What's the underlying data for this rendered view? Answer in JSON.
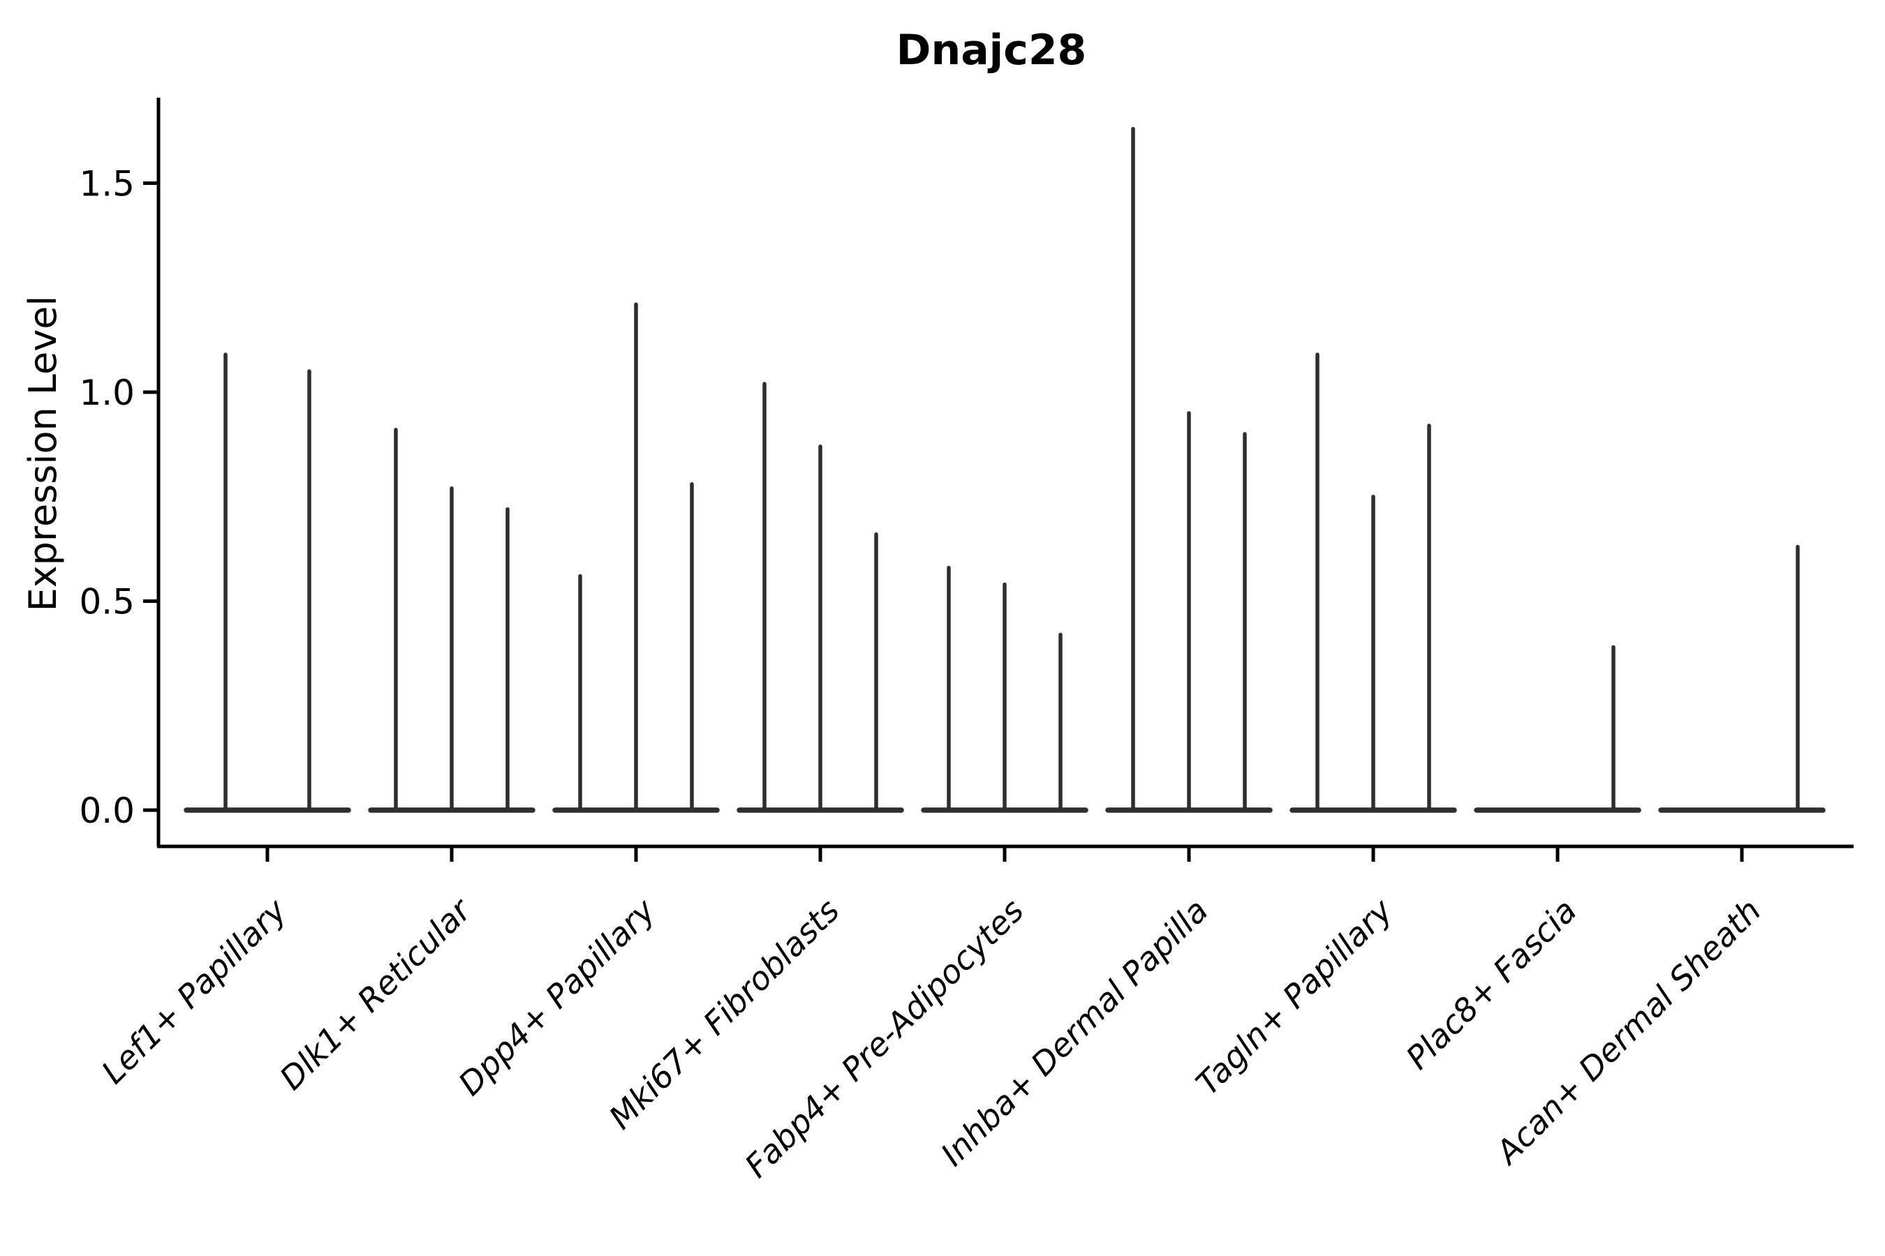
{
  "title": "Dnajc28",
  "colors": {
    "background": "#ffffff",
    "axis_ink": "#000000",
    "violin_ink": "#2e2e2e"
  },
  "chart_data": {
    "type": "violin",
    "title": "Dnajc28",
    "xlabel": "",
    "ylabel": "Expression Level",
    "ylim": [
      -0.09,
      1.71
    ],
    "yticks": [
      0.0,
      0.5,
      1.0,
      1.5
    ],
    "ytick_labels": [
      "0.0",
      "0.5",
      "1.0",
      "1.5"
    ],
    "grid": false,
    "legend": "none",
    "x_tick_label_rotation_deg": 45,
    "categories": [
      "Lef1+ Papillary",
      "Dlk1+ Reticular",
      "Dpp4+ Papillary",
      "Mki67+ Fibroblasts",
      "Fabp4+ Pre-Adipocytes",
      "Inhba+ Dermal Papilla",
      "Tagln+ Papillary",
      "Plac8+ Fascia",
      "Acan+ Dermal Sheath"
    ],
    "groups": [
      {
        "label": "Lef1+ Papillary",
        "violin_max_values": [
          1.09,
          1.05
        ]
      },
      {
        "label": "Dlk1+ Reticular",
        "violin_max_values": [
          0.91,
          0.77,
          0.72
        ]
      },
      {
        "label": "Dpp4+ Papillary",
        "violin_max_values": [
          0.56,
          1.21,
          0.78
        ]
      },
      {
        "label": "Mki67+ Fibroblasts",
        "violin_max_values": [
          1.02,
          0.87,
          0.66
        ]
      },
      {
        "label": "Fabp4+ Pre-Adipocytes",
        "violin_max_values": [
          0.58,
          0.54,
          0.42
        ]
      },
      {
        "label": "Inhba+ Dermal Papilla",
        "violin_max_values": [
          1.63,
          0.95,
          0.9
        ]
      },
      {
        "label": "Tagln+ Papillary",
        "violin_max_values": [
          1.09,
          0.75,
          0.92
        ]
      },
      {
        "label": "Plac8+ Fascia",
        "violin_max_values": [
          0,
          0,
          0.39
        ]
      },
      {
        "label": "Acan+ Dermal Sheath",
        "violin_max_values": [
          0,
          0,
          0.63
        ]
      }
    ]
  }
}
